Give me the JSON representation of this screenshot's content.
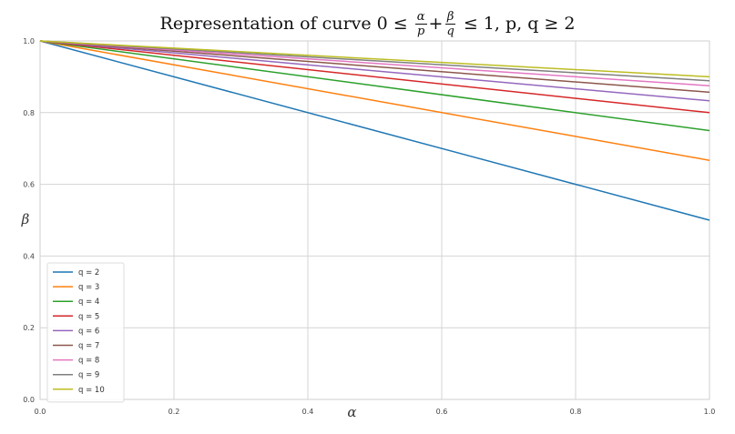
{
  "chart_data": {
    "type": "line",
    "title": {
      "prefix": "Representation of curve ",
      "expr_start": "0 ≤ ",
      "frac1_num": "α",
      "frac1_den": "p",
      "plus": "+",
      "frac2_num": "β",
      "frac2_den": "q",
      "expr_end": " ≤ 1, p, q ≥ 2"
    },
    "xlabel": "α",
    "ylabel": "β",
    "xlim": [
      0.0,
      1.0
    ],
    "ylim": [
      0.0,
      1.0
    ],
    "x_ticks": [
      "0.0",
      "0.2",
      "0.4",
      "0.6",
      "0.8",
      "1.0"
    ],
    "y_ticks": [
      "0.0",
      "0.2",
      "0.4",
      "0.6",
      "0.8",
      "1.0"
    ],
    "grid": true,
    "legend_position": "lower-left",
    "x": [
      0.0,
      1.0
    ],
    "series": [
      {
        "name": "q = 2",
        "values": [
          1.0,
          0.5
        ],
        "color": "#1f77b4"
      },
      {
        "name": "q = 3",
        "values": [
          1.0,
          0.667
        ],
        "color": "#ff7f0e"
      },
      {
        "name": "q = 4",
        "values": [
          1.0,
          0.75
        ],
        "color": "#2ca02c"
      },
      {
        "name": "q = 5",
        "values": [
          1.0,
          0.8
        ],
        "color": "#d62728"
      },
      {
        "name": "q = 6",
        "values": [
          1.0,
          0.833
        ],
        "color": "#9467bd"
      },
      {
        "name": "q = 7",
        "values": [
          1.0,
          0.857
        ],
        "color": "#8c564b"
      },
      {
        "name": "q = 8",
        "values": [
          1.0,
          0.875
        ],
        "color": "#e377c2"
      },
      {
        "name": "q = 9",
        "values": [
          1.0,
          0.889
        ],
        "color": "#7f7f7f"
      },
      {
        "name": "q = 10",
        "values": [
          1.0,
          0.9
        ],
        "color": "#bcbd22"
      }
    ]
  }
}
